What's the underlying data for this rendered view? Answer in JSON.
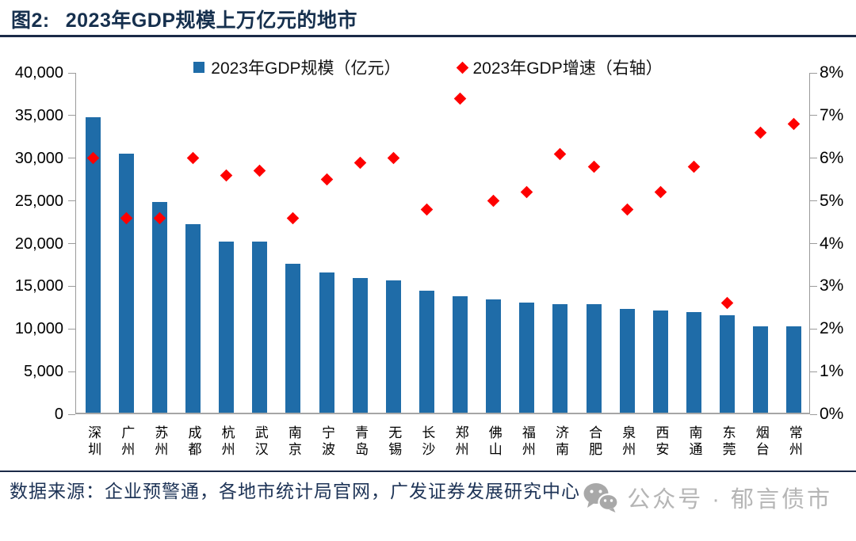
{
  "figure": {
    "label": "图2:",
    "title": "2023年GDP规模上万亿元的地市"
  },
  "chart_data": {
    "type": "bar",
    "subtype": "combo-bar-with-scatter-diamonds",
    "categories": [
      "深圳",
      "广州",
      "苏州",
      "成都",
      "杭州",
      "武汉",
      "南京",
      "宁波",
      "青岛",
      "无锡",
      "长沙",
      "郑州",
      "佛山",
      "福州",
      "济南",
      "合肥",
      "泉州",
      "西安",
      "南通",
      "东莞",
      "烟台",
      "常州"
    ],
    "series": [
      {
        "name": "2023年GDP规模（亿元）",
        "type": "bar",
        "axis": "left",
        "color": "#1F6CA8",
        "values": [
          34606,
          30356,
          24653,
          22075,
          20059,
          20012,
          17421,
          16453,
          15760,
          15456,
          14332,
          13618,
          13276,
          12928,
          12757,
          12674,
          12172,
          12011,
          11813,
          11438,
          10163,
          10117
        ]
      },
      {
        "name": "2023年GDP增速（右轴）",
        "type": "scatter",
        "marker": "diamond",
        "axis": "right",
        "color": "#FE0000",
        "values": [
          6.0,
          4.6,
          4.6,
          6.0,
          5.6,
          5.7,
          4.6,
          5.5,
          5.9,
          6.0,
          4.8,
          7.4,
          5.0,
          5.2,
          6.1,
          5.8,
          4.8,
          5.2,
          5.8,
          2.6,
          6.6,
          6.8
        ]
      }
    ],
    "left_axis": {
      "min": 0,
      "max": 40000,
      "step": 5000,
      "tick_labels": [
        "40,000",
        "35,000",
        "30,000",
        "25,000",
        "20,000",
        "15,000",
        "10,000",
        "5,000",
        "0"
      ]
    },
    "right_axis": {
      "min": 0,
      "max": 8,
      "step": 1,
      "tick_labels": [
        "8%",
        "7%",
        "6%",
        "5%",
        "4%",
        "3%",
        "2%",
        "1%",
        "0%"
      ]
    },
    "legend_position": "top",
    "grid": false
  },
  "footer": {
    "source": "数据来源：企业预警通，各地市统计局官网，广发证券发展研究中心",
    "watermark": "公众号 · 郁言债市"
  },
  "colors": {
    "title": "#16304E",
    "bar": "#1F6CA8",
    "marker": "#FE0000",
    "divider": "#1B2A47",
    "axis": "#9B9B9B",
    "footer_text": "#1D3356",
    "watermark_gray": "#B5B5B5"
  }
}
